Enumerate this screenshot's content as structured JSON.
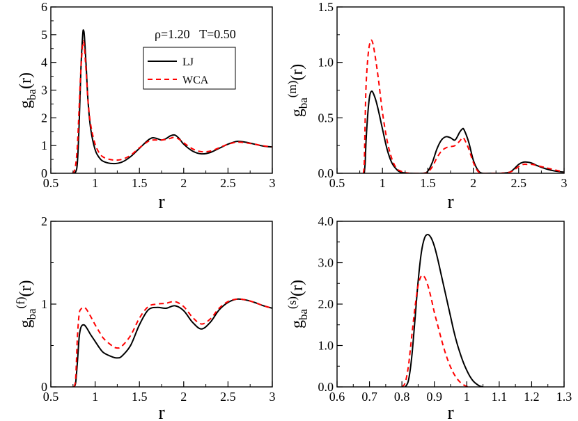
{
  "annotation": "ρ=1.20   T=0.50",
  "legend": [
    {
      "label": "LJ",
      "color": "#000000",
      "dash": "solid"
    },
    {
      "label": "WCA",
      "color": "#ff0000",
      "dash": "dashed"
    }
  ],
  "chart_data": [
    {
      "type": "line",
      "title": "",
      "xlabel": "r",
      "ylabel": "g_ba(r)",
      "ylabel_main": "g",
      "ylabel_sub": "ba",
      "ylabel_sup": "",
      "ylabel_tail": "(r)",
      "xlim": [
        0.5,
        3
      ],
      "ylim": [
        0,
        6
      ],
      "xticks": [
        0.5,
        1,
        1.5,
        2,
        2.5,
        3
      ],
      "xtick_labels": [
        "0.5",
        "1",
        "1.5",
        "2",
        "2.5",
        "3"
      ],
      "yticks": [
        0,
        1,
        2,
        3,
        4,
        5,
        6
      ],
      "ytick_labels": [
        "0",
        "1",
        "2",
        "3",
        "4",
        "5",
        "6"
      ],
      "series": [
        {
          "name": "LJ",
          "x": [
            0.75,
            0.78,
            0.8,
            0.82,
            0.84,
            0.86,
            0.87,
            0.88,
            0.9,
            0.92,
            0.95,
            1.0,
            1.05,
            1.1,
            1.2,
            1.3,
            1.4,
            1.5,
            1.6,
            1.65,
            1.7,
            1.75,
            1.8,
            1.85,
            1.9,
            1.95,
            2.0,
            2.1,
            2.2,
            2.3,
            2.4,
            2.5,
            2.6,
            2.7,
            2.8,
            2.9,
            3.0
          ],
          "y": [
            0,
            0.05,
            0.4,
            1.8,
            3.8,
            5.0,
            5.15,
            4.9,
            3.8,
            2.6,
            1.6,
            0.85,
            0.55,
            0.42,
            0.35,
            0.4,
            0.6,
            0.9,
            1.2,
            1.28,
            1.25,
            1.2,
            1.25,
            1.35,
            1.38,
            1.25,
            1.05,
            0.8,
            0.7,
            0.75,
            0.9,
            1.05,
            1.15,
            1.12,
            1.05,
            0.98,
            0.95
          ]
        },
        {
          "name": "WCA",
          "x": [
            0.74,
            0.76,
            0.78,
            0.8,
            0.82,
            0.84,
            0.86,
            0.87,
            0.88,
            0.9,
            0.92,
            0.95,
            1.0,
            1.05,
            1.1,
            1.2,
            1.3,
            1.4,
            1.5,
            1.6,
            1.65,
            1.7,
            1.75,
            1.8,
            1.85,
            1.9,
            1.95,
            2.0,
            2.1,
            2.2,
            2.3,
            2.4,
            2.5,
            2.6,
            2.7,
            2.8,
            2.9,
            3.0
          ],
          "y": [
            0,
            0.05,
            0.3,
            1.0,
            2.4,
            3.8,
            4.65,
            4.75,
            4.5,
            3.6,
            2.6,
            1.75,
            1.05,
            0.72,
            0.57,
            0.48,
            0.5,
            0.65,
            0.92,
            1.15,
            1.2,
            1.2,
            1.2,
            1.22,
            1.26,
            1.3,
            1.22,
            1.1,
            0.88,
            0.78,
            0.8,
            0.92,
            1.05,
            1.12,
            1.1,
            1.05,
            0.99,
            0.95
          ]
        }
      ]
    },
    {
      "type": "line",
      "title": "",
      "xlabel": "r",
      "ylabel": "g_ba^(m)(r)",
      "ylabel_main": "g",
      "ylabel_sub": "ba",
      "ylabel_sup": "(m)",
      "ylabel_tail": "(r)",
      "xlim": [
        0.5,
        3
      ],
      "ylim": [
        0,
        1.5
      ],
      "xticks": [
        0.5,
        1,
        1.5,
        2,
        2.5,
        3
      ],
      "xtick_labels": [
        "0.5",
        "1",
        "1.5",
        "2",
        "2.5",
        "3"
      ],
      "yticks": [
        0,
        0.5,
        1.0,
        1.5
      ],
      "ytick_labels": [
        "0.0",
        "0.5",
        "1.0",
        "1.5"
      ],
      "series": [
        {
          "name": "LJ",
          "x": [
            0.8,
            0.81,
            0.82,
            0.84,
            0.86,
            0.88,
            0.9,
            0.93,
            0.96,
            1.0,
            1.05,
            1.1,
            1.15,
            1.2,
            1.3,
            1.45,
            1.5,
            1.55,
            1.6,
            1.65,
            1.7,
            1.75,
            1.8,
            1.85,
            1.88,
            1.9,
            1.95,
            2.0,
            2.05,
            2.1,
            2.2,
            2.3,
            2.4,
            2.45,
            2.5,
            2.55,
            2.6,
            2.65,
            2.7,
            2.8,
            2.9,
            3.0
          ],
          "y": [
            0,
            0.1,
            0.3,
            0.55,
            0.7,
            0.74,
            0.72,
            0.65,
            0.55,
            0.4,
            0.22,
            0.1,
            0.04,
            0.01,
            0,
            0,
            0.02,
            0.1,
            0.22,
            0.3,
            0.33,
            0.32,
            0.3,
            0.37,
            0.4,
            0.39,
            0.28,
            0.12,
            0.03,
            0,
            0,
            0,
            0.01,
            0.04,
            0.08,
            0.1,
            0.1,
            0.09,
            0.07,
            0.04,
            0.02,
            0.01
          ]
        },
        {
          "name": "WCA",
          "x": [
            0.79,
            0.8,
            0.81,
            0.82,
            0.84,
            0.86,
            0.88,
            0.9,
            0.93,
            0.96,
            1.0,
            1.05,
            1.1,
            1.15,
            1.2,
            1.3,
            1.45,
            1.5,
            1.55,
            1.6,
            1.65,
            1.7,
            1.75,
            1.8,
            1.85,
            1.88,
            1.9,
            1.95,
            2.0,
            2.05,
            2.1,
            2.2,
            2.3,
            2.4,
            2.45,
            2.5,
            2.55,
            2.6,
            2.65,
            2.7,
            2.8,
            2.9,
            3.0
          ],
          "y": [
            0,
            0.1,
            0.5,
            0.8,
            1.05,
            1.17,
            1.2,
            1.15,
            1.0,
            0.82,
            0.55,
            0.3,
            0.14,
            0.05,
            0.02,
            0,
            0,
            0.01,
            0.06,
            0.14,
            0.2,
            0.23,
            0.24,
            0.25,
            0.29,
            0.32,
            0.31,
            0.22,
            0.1,
            0.02,
            0,
            0,
            0,
            0.01,
            0.03,
            0.06,
            0.08,
            0.08,
            0.08,
            0.07,
            0.05,
            0.03,
            0.01
          ]
        }
      ]
    },
    {
      "type": "line",
      "title": "",
      "xlabel": "r",
      "ylabel": "g_ba^(f)(r)",
      "ylabel_main": "g",
      "ylabel_sub": "ba",
      "ylabel_sup": "(f)",
      "ylabel_tail": "(r)",
      "xlim": [
        0.5,
        3
      ],
      "ylim": [
        0,
        2
      ],
      "xticks": [
        0.5,
        1,
        1.5,
        2,
        2.5,
        3
      ],
      "xtick_labels": [
        "0.5",
        "1",
        "1.5",
        "2",
        "2.5",
        "3"
      ],
      "yticks": [
        0,
        1,
        2
      ],
      "ytick_labels": [
        "0",
        "1",
        "2"
      ],
      "series": [
        {
          "name": "LJ",
          "x": [
            0.76,
            0.78,
            0.8,
            0.82,
            0.84,
            0.87,
            0.9,
            0.95,
            1.0,
            1.05,
            1.1,
            1.2,
            1.25,
            1.3,
            1.4,
            1.5,
            1.6,
            1.7,
            1.8,
            1.9,
            2.0,
            2.1,
            2.2,
            2.3,
            2.4,
            2.5,
            2.6,
            2.7,
            2.8,
            2.9,
            3.0
          ],
          "y": [
            0,
            0.05,
            0.3,
            0.6,
            0.72,
            0.75,
            0.72,
            0.63,
            0.55,
            0.47,
            0.41,
            0.36,
            0.35,
            0.37,
            0.5,
            0.75,
            0.93,
            0.96,
            0.95,
            0.98,
            0.92,
            0.78,
            0.7,
            0.78,
            0.93,
            1.02,
            1.06,
            1.05,
            1.02,
            0.98,
            0.95
          ]
        },
        {
          "name": "WCA",
          "x": [
            0.76,
            0.78,
            0.8,
            0.82,
            0.84,
            0.87,
            0.9,
            0.95,
            1.0,
            1.05,
            1.1,
            1.2,
            1.25,
            1.3,
            1.4,
            1.5,
            1.6,
            1.7,
            1.8,
            1.9,
            2.0,
            2.1,
            2.2,
            2.3,
            2.4,
            2.5,
            2.6,
            2.7,
            2.8,
            2.9,
            3.0
          ],
          "y": [
            0,
            0.1,
            0.6,
            0.88,
            0.94,
            0.96,
            0.94,
            0.85,
            0.75,
            0.66,
            0.58,
            0.49,
            0.47,
            0.49,
            0.62,
            0.83,
            0.97,
            1.0,
            1.01,
            1.03,
            0.97,
            0.84,
            0.76,
            0.82,
            0.95,
            1.03,
            1.06,
            1.05,
            1.02,
            0.98,
            0.95
          ]
        }
      ]
    },
    {
      "type": "line",
      "title": "",
      "xlabel": "r",
      "ylabel": "g_ba^(s)(r)",
      "ylabel_main": "g",
      "ylabel_sub": "ba",
      "ylabel_sup": "(s)",
      "ylabel_tail": "(r)",
      "xlim": [
        0.6,
        1.3
      ],
      "ylim": [
        0,
        4.0
      ],
      "xticks": [
        0.6,
        0.7,
        0.8,
        0.9,
        1.0,
        1.1,
        1.2,
        1.3
      ],
      "xtick_labels": [
        "0.6",
        "0.7",
        "0.8",
        "0.9",
        "1",
        "1.1",
        "1.2",
        "1.3"
      ],
      "yticks": [
        0,
        1.0,
        2.0,
        3.0,
        4.0
      ],
      "ytick_labels": [
        "0.0",
        "1.0",
        "2.0",
        "3.0",
        "4.0"
      ],
      "series": [
        {
          "name": "LJ",
          "x": [
            0.81,
            0.82,
            0.83,
            0.84,
            0.85,
            0.86,
            0.87,
            0.88,
            0.89,
            0.9,
            0.91,
            0.92,
            0.93,
            0.94,
            0.95,
            0.96,
            0.97,
            0.98,
            0.99,
            1.0,
            1.01,
            1.02,
            1.03,
            1.04,
            1.05
          ],
          "y": [
            0,
            0.15,
            0.7,
            1.6,
            2.55,
            3.25,
            3.6,
            3.68,
            3.6,
            3.4,
            3.1,
            2.75,
            2.4,
            2.05,
            1.7,
            1.35,
            1.05,
            0.8,
            0.58,
            0.4,
            0.25,
            0.14,
            0.07,
            0.02,
            0
          ]
        },
        {
          "name": "WCA",
          "x": [
            0.8,
            0.81,
            0.82,
            0.83,
            0.84,
            0.85,
            0.86,
            0.87,
            0.88,
            0.89,
            0.9,
            0.91,
            0.92,
            0.93,
            0.94,
            0.95,
            0.96,
            0.97,
            0.98,
            0.99,
            1.0,
            1.01
          ],
          "y": [
            0,
            0.1,
            0.5,
            1.2,
            1.9,
            2.45,
            2.68,
            2.65,
            2.45,
            2.15,
            1.8,
            1.5,
            1.2,
            0.92,
            0.68,
            0.48,
            0.32,
            0.2,
            0.11,
            0.05,
            0.01,
            0
          ]
        }
      ]
    }
  ]
}
